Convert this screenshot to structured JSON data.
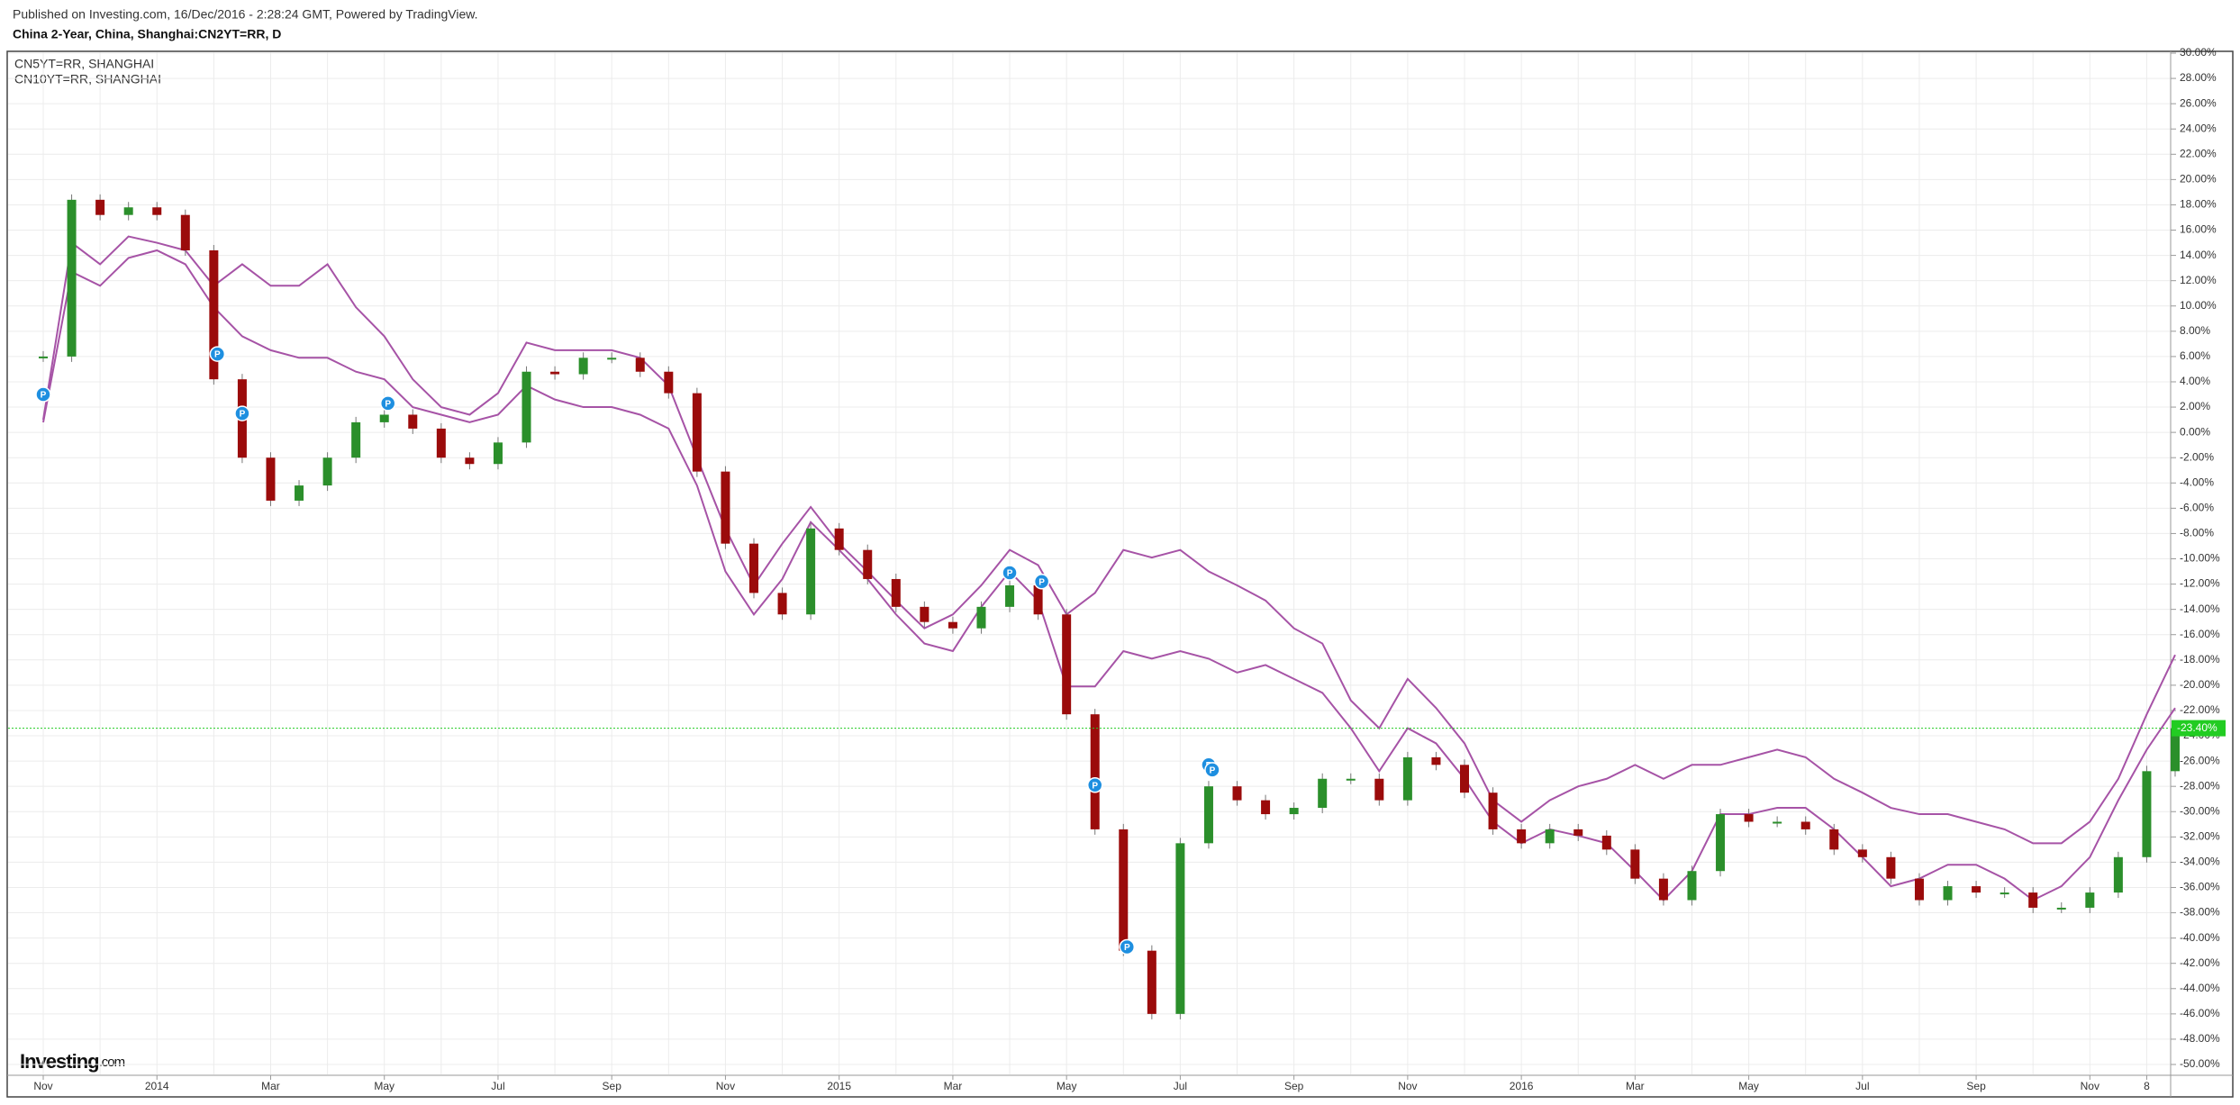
{
  "header": {
    "published": "Published on Investing.com, 16/Dec/2016 - 2:28:24 GMT, Powered by TradingView.",
    "symbol": "China 2-Year, China, Shanghai:CN2YT=RR, D"
  },
  "logo": {
    "name": "Investing",
    "suffix": ".com"
  },
  "chart_data": {
    "type": "candle-line",
    "categories": [
      "Nov",
      null,
      null,
      null,
      "2014",
      null,
      null,
      null,
      "Mar",
      null,
      null,
      null,
      "May",
      null,
      null,
      null,
      "Jul",
      null,
      null,
      null,
      "Sep",
      null,
      null,
      null,
      "Nov",
      null,
      null,
      null,
      "2015",
      null,
      null,
      null,
      "Mar",
      null,
      null,
      null,
      "May",
      null,
      null,
      null,
      "Jul",
      null,
      null,
      null,
      "Sep",
      null,
      null,
      null,
      "Nov",
      null,
      null,
      null,
      "2016",
      null,
      null,
      null,
      "Mar",
      null,
      null,
      null,
      "May",
      null,
      null,
      null,
      "Jul",
      null,
      null,
      null,
      "Sep",
      null,
      null,
      null,
      "Nov",
      null,
      "8",
      null
    ],
    "candles": {
      "up_color": "#2b8f2b",
      "down_color": "#9b0b0b",
      "values": [
        6,
        18.4,
        17.2,
        17.8,
        17.2,
        14.4,
        4.2,
        -2,
        -5.4,
        -4.2,
        -2,
        0.8,
        1.4,
        0.3,
        -2,
        -2.5,
        -0.8,
        4.8,
        4.6,
        5.9,
        5.9,
        4.8,
        3.1,
        -3.1,
        -8.8,
        -12.7,
        -14.4,
        -7.6,
        -9.3,
        -11.6,
        -13.8,
        -15,
        -15.5,
        -13.8,
        -12.1,
        -14.4,
        -22.3,
        -31.4,
        -41,
        -46,
        -32.5,
        -28,
        -29.1,
        -30.2,
        -29.7,
        -27.4,
        -27.4,
        -29.1,
        -25.7,
        -26.3,
        -28.5,
        -31.4,
        -32.5,
        -31.4,
        -31.9,
        -33,
        -35.3,
        -37,
        -34.7,
        -30.2,
        -30.8,
        -30.8,
        -31.4,
        -33,
        -33.6,
        -35.3,
        -37,
        -35.9,
        -36.4,
        -36.4,
        -37.6,
        -37.6,
        -36.4,
        -33.6,
        -26.8,
        -23.4
      ]
    },
    "series": [
      {
        "name": "CN5YT=RR, SHANGHAI",
        "color": "#a653a6",
        "values": [
          0.8,
          12.7,
          11.6,
          13.8,
          14.4,
          13.3,
          9.9,
          7.6,
          6.5,
          5.9,
          5.9,
          4.8,
          4.2,
          2,
          1.4,
          0.8,
          1.4,
          3.7,
          2.6,
          2,
          2,
          1.4,
          0.3,
          -4.2,
          -11,
          -14.4,
          -11.6,
          -7.1,
          -9.3,
          -11.6,
          -14.4,
          -16.7,
          -17.3,
          -13.8,
          -11,
          -13.3,
          -20.1,
          -20.1,
          -17.3,
          -17.9,
          -17.3,
          -17.9,
          -19,
          -18.4,
          -19.5,
          -20.6,
          -23.4,
          -26.8,
          -23.4,
          -24.6,
          -27.4,
          -30.8,
          -32.5,
          -31.4,
          -31.9,
          -32.5,
          -34.7,
          -37,
          -34.7,
          -30.2,
          -30.2,
          -29.7,
          -29.7,
          -31.4,
          -33.6,
          -35.9,
          -35.3,
          -34.2,
          -34.2,
          -35.3,
          -37,
          -35.9,
          -33.6,
          -29.1,
          -25.1,
          -21.8
        ]
      },
      {
        "name": "CN10YT=RR, SHANGHAI",
        "color": "#a653a6",
        "values": [
          1,
          15,
          13.3,
          15.5,
          15,
          14.4,
          11.6,
          13.3,
          11.6,
          11.6,
          13.3,
          9.9,
          7.6,
          4.2,
          2,
          1.4,
          3.1,
          7.1,
          6.5,
          6.5,
          6.5,
          5.9,
          3.7,
          -2,
          -7.6,
          -12.1,
          -8.8,
          -5.9,
          -8.8,
          -11,
          -13.3,
          -15.5,
          -14.4,
          -12.1,
          -9.3,
          -10.5,
          -14.4,
          -12.7,
          -9.3,
          -9.9,
          -9.3,
          -11,
          -12.1,
          -13.3,
          -15.5,
          -16.7,
          -21.2,
          -23.4,
          -19.5,
          -21.8,
          -24.6,
          -29.1,
          -30.8,
          -29.1,
          -28,
          -27.4,
          -26.3,
          -27.4,
          -26.3,
          -26.3,
          -25.7,
          -25.1,
          -25.7,
          -27.4,
          -28.5,
          -29.7,
          -30.2,
          -30.2,
          -30.8,
          -31.4,
          -32.5,
          -32.5,
          -30.8,
          -27.4,
          -22.3,
          -17.6
        ]
      }
    ],
    "last_value": {
      "value": -23.4,
      "label": "-23.40%",
      "color": "#22cc22"
    },
    "markers": [
      {
        "label": "P",
        "x_index": 0,
        "value": 3
      },
      {
        "label": "P",
        "x_index": 6,
        "value": 6.2
      },
      {
        "label": "P",
        "x_index": 7,
        "value": 1.5
      },
      {
        "label": "P",
        "x_index": 12,
        "value": 2.3
      },
      {
        "label": "P",
        "x_index": 34,
        "value": -11.1
      },
      {
        "label": "P",
        "x_index": 35,
        "value": -11.8
      },
      {
        "label": "P",
        "x_index": 37,
        "value": -27.9
      },
      {
        "label": "P",
        "x_index": 38,
        "value": -40.7
      },
      {
        "label": "P",
        "x_index": 41,
        "value": -26.3
      },
      {
        "label": "P",
        "x_index": 41,
        "value": -26.7
      }
    ],
    "ylim": [
      -50,
      30
    ],
    "yticks": [
      {
        "value": 30,
        "label": "30.00%"
      },
      {
        "value": 28,
        "label": "28.00%"
      },
      {
        "value": 26,
        "label": "26.00%"
      },
      {
        "value": 24,
        "label": "24.00%"
      },
      {
        "value": 22,
        "label": "22.00%"
      },
      {
        "value": 20,
        "label": "20.00%"
      },
      {
        "value": 18,
        "label": "18.00%"
      },
      {
        "value": 16,
        "label": "16.00%"
      },
      {
        "value": 14,
        "label": "14.00%"
      },
      {
        "value": 12,
        "label": "12.00%"
      },
      {
        "value": 10,
        "label": "10.00%"
      },
      {
        "value": 8,
        "label": "8.00%"
      },
      {
        "value": 6,
        "label": "6.00%"
      },
      {
        "value": 4,
        "label": "4.00%"
      },
      {
        "value": 2,
        "label": "2.00%"
      },
      {
        "value": 0,
        "label": "0.00%"
      },
      {
        "value": -2,
        "label": "-2.00%"
      },
      {
        "value": -4,
        "label": "-4.00%"
      },
      {
        "value": -6,
        "label": "-6.00%"
      },
      {
        "value": -8,
        "label": "-8.00%"
      },
      {
        "value": -10,
        "label": "-10.00%"
      },
      {
        "value": -12,
        "label": "-12.00%"
      },
      {
        "value": -14,
        "label": "-14.00%"
      },
      {
        "value": -16,
        "label": "-16.00%"
      },
      {
        "value": -18,
        "label": "-18.00%"
      },
      {
        "value": -20,
        "label": "-20.00%"
      },
      {
        "value": -22,
        "label": "-22.00%"
      },
      {
        "value": -24,
        "label": "-24.00%"
      },
      {
        "value": -26,
        "label": "-26.00%"
      },
      {
        "value": -28,
        "label": "-28.00%"
      },
      {
        "value": -30,
        "label": "-30.00%"
      },
      {
        "value": -32,
        "label": "-32.00%"
      },
      {
        "value": -34,
        "label": "-34.00%"
      },
      {
        "value": -36,
        "label": "-36.00%"
      },
      {
        "value": -38,
        "label": "-38.00%"
      },
      {
        "value": -40,
        "label": "-40.00%"
      },
      {
        "value": -42,
        "label": "-42.00%"
      },
      {
        "value": -44,
        "label": "-44.00%"
      },
      {
        "value": -46,
        "label": "-46.00%"
      },
      {
        "value": -48,
        "label": "-48.00%"
      },
      {
        "value": -50,
        "label": "-50.00%"
      }
    ],
    "grid": true
  }
}
